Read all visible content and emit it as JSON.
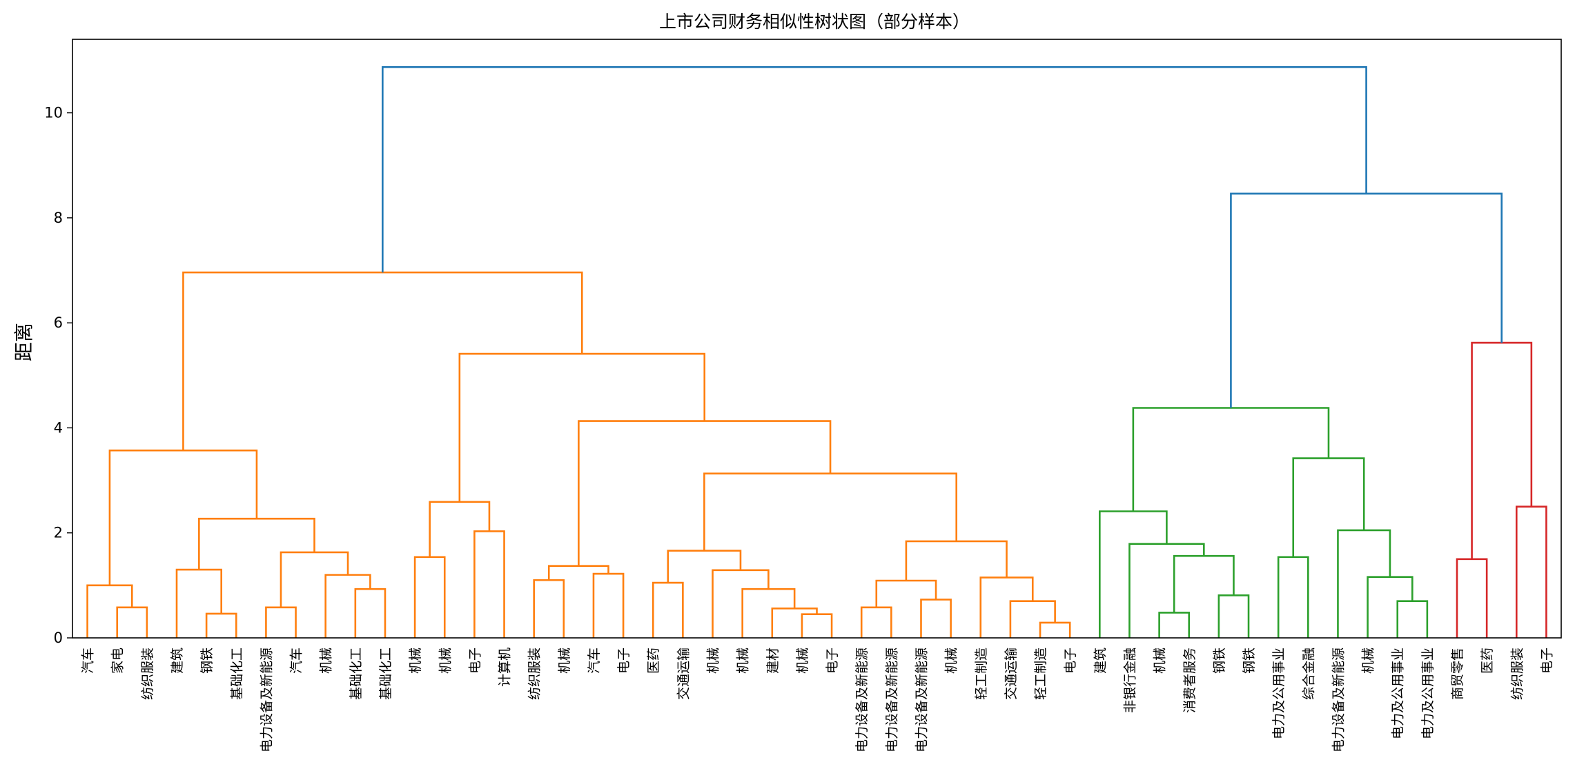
{
  "chart_data": {
    "type": "dendrogram",
    "title": "上市公司财务相似性树状图（部分样本）",
    "xlabel": "",
    "ylabel": "距离",
    "ylim": [
      0,
      11.4
    ],
    "yticks": [
      0,
      2,
      4,
      6,
      8,
      10
    ],
    "grid": false,
    "colors": {
      "orange": "#ff7f0e",
      "green": "#2ca02c",
      "red": "#d62728",
      "blue": "#1f77b4"
    },
    "leaves": [
      "汽车",
      "家电",
      "纺织服装",
      "建筑",
      "钢铁",
      "基础化工",
      "电力设备及新能源",
      "汽车",
      "机械",
      "基础化工",
      "基础化工",
      "机械",
      "机械",
      "电子",
      "计算机",
      "纺织服装",
      "机械",
      "汽车",
      "电子",
      "医药",
      "交通运输",
      "机械",
      "机械",
      "建材",
      "机械",
      "电子",
      "电力设备及新能源",
      "电力设备及新能源",
      "电力设备及新能源",
      "机械",
      "轻工制造",
      "交通运输",
      "轻工制造",
      "电子",
      "建筑",
      "非银行金融",
      "机械",
      "消费者服务",
      "钢铁",
      "钢铁",
      "电力及公用事业",
      "综合金融",
      "电力设备及新能源",
      "机械",
      "电力及公用事业",
      "电力及公用事业",
      "商贸零售",
      "医药",
      "纺织服装",
      "电子"
    ],
    "merges": [
      {
        "a": 1,
        "b": 2,
        "h": 0.58,
        "c": "orange"
      },
      {
        "a": 0,
        "b": 50,
        "h": 1.0,
        "c": "orange"
      },
      {
        "a": 4,
        "b": 5,
        "h": 0.46,
        "c": "orange"
      },
      {
        "a": 3,
        "b": 52,
        "h": 1.3,
        "c": "orange"
      },
      {
        "a": 6,
        "b": 7,
        "h": 0.58,
        "c": "orange"
      },
      {
        "a": 9,
        "b": 10,
        "h": 0.93,
        "c": "orange"
      },
      {
        "a": 8,
        "b": 55,
        "h": 1.2,
        "c": "orange"
      },
      {
        "a": 54,
        "b": 56,
        "h": 1.63,
        "c": "orange"
      },
      {
        "a": 53,
        "b": 57,
        "h": 2.27,
        "c": "orange"
      },
      {
        "a": 51,
        "b": 58,
        "h": 3.57,
        "c": "orange"
      },
      {
        "a": 11,
        "b": 12,
        "h": 1.54,
        "c": "orange"
      },
      {
        "a": 13,
        "b": 14,
        "h": 2.03,
        "c": "orange"
      },
      {
        "a": 60,
        "b": 61,
        "h": 2.59,
        "c": "orange"
      },
      {
        "a": 15,
        "b": 16,
        "h": 1.1,
        "c": "orange"
      },
      {
        "a": 17,
        "b": 18,
        "h": 1.22,
        "c": "orange"
      },
      {
        "a": 63,
        "b": 64,
        "h": 1.37,
        "c": "orange"
      },
      {
        "a": 19,
        "b": 20,
        "h": 1.05,
        "c": "orange"
      },
      {
        "a": 24,
        "b": 25,
        "h": 0.45,
        "c": "orange"
      },
      {
        "a": 23,
        "b": 67,
        "h": 0.56,
        "c": "orange"
      },
      {
        "a": 22,
        "b": 68,
        "h": 0.93,
        "c": "orange"
      },
      {
        "a": 21,
        "b": 69,
        "h": 1.29,
        "c": "orange"
      },
      {
        "a": 66,
        "b": 70,
        "h": 1.66,
        "c": "orange"
      },
      {
        "a": 26,
        "b": 27,
        "h": 0.58,
        "c": "orange"
      },
      {
        "a": 28,
        "b": 29,
        "h": 0.73,
        "c": "orange"
      },
      {
        "a": 72,
        "b": 73,
        "h": 1.09,
        "c": "orange"
      },
      {
        "a": 32,
        "b": 33,
        "h": 0.29,
        "c": "orange"
      },
      {
        "a": 31,
        "b": 75,
        "h": 0.7,
        "c": "orange"
      },
      {
        "a": 30,
        "b": 76,
        "h": 1.15,
        "c": "orange"
      },
      {
        "a": 74,
        "b": 77,
        "h": 1.84,
        "c": "orange"
      },
      {
        "a": 71,
        "b": 78,
        "h": 3.13,
        "c": "orange"
      },
      {
        "a": 65,
        "b": 79,
        "h": 4.13,
        "c": "orange"
      },
      {
        "a": 62,
        "b": 80,
        "h": 5.41,
        "c": "orange"
      },
      {
        "a": 59,
        "b": 81,
        "h": 6.96,
        "c": "orange"
      },
      {
        "a": 36,
        "b": 37,
        "h": 0.48,
        "c": "green"
      },
      {
        "a": 38,
        "b": 39,
        "h": 0.81,
        "c": "green"
      },
      {
        "a": 83,
        "b": 84,
        "h": 1.56,
        "c": "green"
      },
      {
        "a": 35,
        "b": 85,
        "h": 1.79,
        "c": "green"
      },
      {
        "a": 34,
        "b": 86,
        "h": 2.41,
        "c": "green"
      },
      {
        "a": 40,
        "b": 41,
        "h": 1.54,
        "c": "green"
      },
      {
        "a": 44,
        "b": 45,
        "h": 0.7,
        "c": "green"
      },
      {
        "a": 43,
        "b": 89,
        "h": 1.16,
        "c": "green"
      },
      {
        "a": 42,
        "b": 90,
        "h": 2.05,
        "c": "green"
      },
      {
        "a": 88,
        "b": 91,
        "h": 3.42,
        "c": "green"
      },
      {
        "a": 87,
        "b": 92,
        "h": 4.38,
        "c": "green"
      },
      {
        "a": 46,
        "b": 47,
        "h": 1.5,
        "c": "red"
      },
      {
        "a": 48,
        "b": 49,
        "h": 2.5,
        "c": "red"
      },
      {
        "a": 94,
        "b": 95,
        "h": 5.62,
        "c": "red"
      },
      {
        "a": 93,
        "b": 96,
        "h": 8.46,
        "c": "blue"
      },
      {
        "a": 82,
        "b": 97,
        "h": 10.87,
        "c": "blue"
      }
    ]
  }
}
